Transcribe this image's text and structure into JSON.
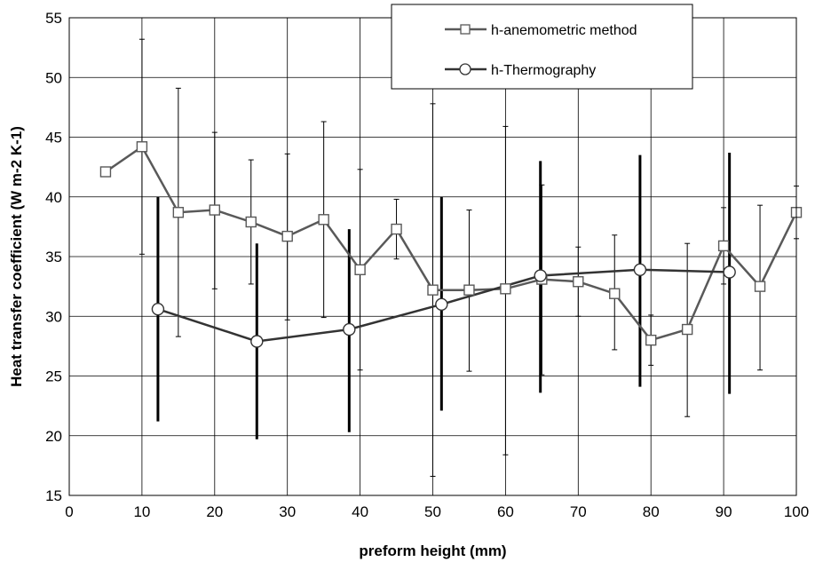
{
  "chart_data": {
    "type": "line",
    "title": "",
    "xlabel": "preform height (mm)",
    "ylabel": "Heat transfer coefficient (W m-2 K-1)",
    "xlim": [
      0,
      100
    ],
    "ylim": [
      15,
      55
    ],
    "xticks": [
      0,
      10,
      20,
      30,
      40,
      50,
      60,
      70,
      80,
      90,
      100
    ],
    "yticks": [
      15,
      20,
      25,
      30,
      35,
      40,
      45,
      50,
      55
    ],
    "grid": true,
    "legend_position": "top-right",
    "series": [
      {
        "name": "h-anemometric method",
        "marker": "square",
        "color": "#595959",
        "error_bar_color": "#000000",
        "points": [
          {
            "x": 5,
            "y": 42.1
          },
          {
            "x": 10,
            "y": 44.2,
            "low": 35.2,
            "high": 53.2
          },
          {
            "x": 15,
            "y": 38.7,
            "low": 28.3,
            "high": 49.1
          },
          {
            "x": 20,
            "y": 38.9,
            "low": 32.3,
            "high": 45.4
          },
          {
            "x": 25,
            "y": 37.9,
            "low": 32.7,
            "high": 43.1
          },
          {
            "x": 30,
            "y": 36.7,
            "low": 29.7,
            "high": 43.6
          },
          {
            "x": 35,
            "y": 38.1,
            "low": 29.9,
            "high": 46.3
          },
          {
            "x": 40,
            "y": 33.9,
            "low": 25.5,
            "high": 42.3
          },
          {
            "x": 45,
            "y": 37.3,
            "low": 34.8,
            "high": 39.8
          },
          {
            "x": 50,
            "y": 32.2,
            "low": 16.6,
            "high": 47.8
          },
          {
            "x": 55,
            "y": 32.2,
            "low": 25.4,
            "high": 38.9
          },
          {
            "x": 60,
            "y": 32.3,
            "low": 18.4,
            "high": 45.9
          },
          {
            "x": 65,
            "y": 33.1,
            "low": 25.1,
            "high": 41.0
          },
          {
            "x": 70,
            "y": 32.9,
            "low": 30.0,
            "high": 35.8
          },
          {
            "x": 75,
            "y": 31.9,
            "low": 27.2,
            "high": 36.8
          },
          {
            "x": 80,
            "y": 28.0,
            "low": 25.9,
            "high": 30.1
          },
          {
            "x": 85,
            "y": 28.9,
            "low": 21.6,
            "high": 36.1
          },
          {
            "x": 90,
            "y": 35.9,
            "low": 32.7,
            "high": 39.1
          },
          {
            "x": 95,
            "y": 32.5,
            "low": 25.5,
            "high": 39.3
          },
          {
            "x": 100,
            "y": 38.7,
            "low": 36.5,
            "high": 40.9
          }
        ]
      },
      {
        "name": "h-Thermography",
        "marker": "circle",
        "color": "#333333",
        "error_bar_color": "#000000",
        "points": [
          {
            "x": 12.2,
            "y": 30.6,
            "low": 21.2,
            "high": 40.0
          },
          {
            "x": 25.8,
            "y": 27.9,
            "low": 19.7,
            "high": 36.1
          },
          {
            "x": 38.5,
            "y": 28.9,
            "low": 20.3,
            "high": 37.3
          },
          {
            "x": 51.2,
            "y": 31.0,
            "low": 22.1,
            "high": 40.0
          },
          {
            "x": 64.8,
            "y": 33.4,
            "low": 23.6,
            "high": 43.0
          },
          {
            "x": 78.5,
            "y": 33.9,
            "low": 24.1,
            "high": 43.5
          },
          {
            "x": 90.8,
            "y": 33.7,
            "low": 23.5,
            "high": 43.7
          }
        ]
      }
    ]
  }
}
